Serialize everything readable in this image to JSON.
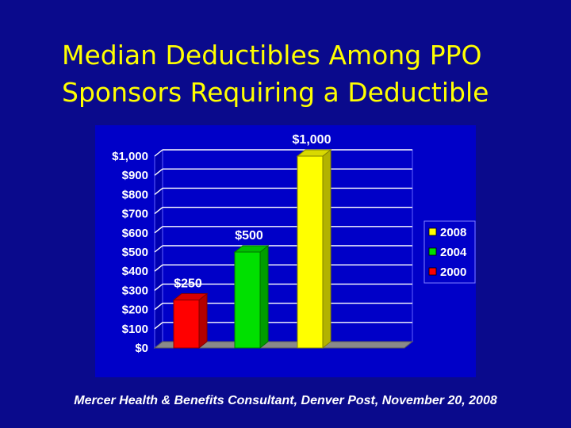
{
  "slide": {
    "title_line1": "Median Deductibles Among PPO",
    "title_line2": "Sponsors Requiring a Deductible",
    "source": "Mercer Health & Benefits Consultant, Denver Post, November 20, 2008"
  },
  "colors": {
    "background": "#0a0a8c",
    "title": "#ffff00",
    "plot_area": "#0000c8",
    "gridline": "#ffffff",
    "text": "#ffffff"
  },
  "chart_data": {
    "type": "bar",
    "title": "",
    "xlabel": "",
    "ylabel": "",
    "ylim": [
      0,
      1000
    ],
    "y_tick_step": 100,
    "y_tick_labels": [
      "$0",
      "$100",
      "$200",
      "$300",
      "$400",
      "$500",
      "$600",
      "$700",
      "$800",
      "$900",
      "$1,000"
    ],
    "grid": true,
    "three_d": true,
    "legend_position": "right",
    "series": [
      {
        "name": "2000",
        "color": "#ff0000",
        "value": 250,
        "label": "$250"
      },
      {
        "name": "2004",
        "color": "#00e000",
        "value": 500,
        "label": "$500"
      },
      {
        "name": "2008",
        "color": "#ffff00",
        "value": 1000,
        "label": "$1,000"
      }
    ],
    "legend_order": [
      "2008",
      "2004",
      "2000"
    ]
  }
}
